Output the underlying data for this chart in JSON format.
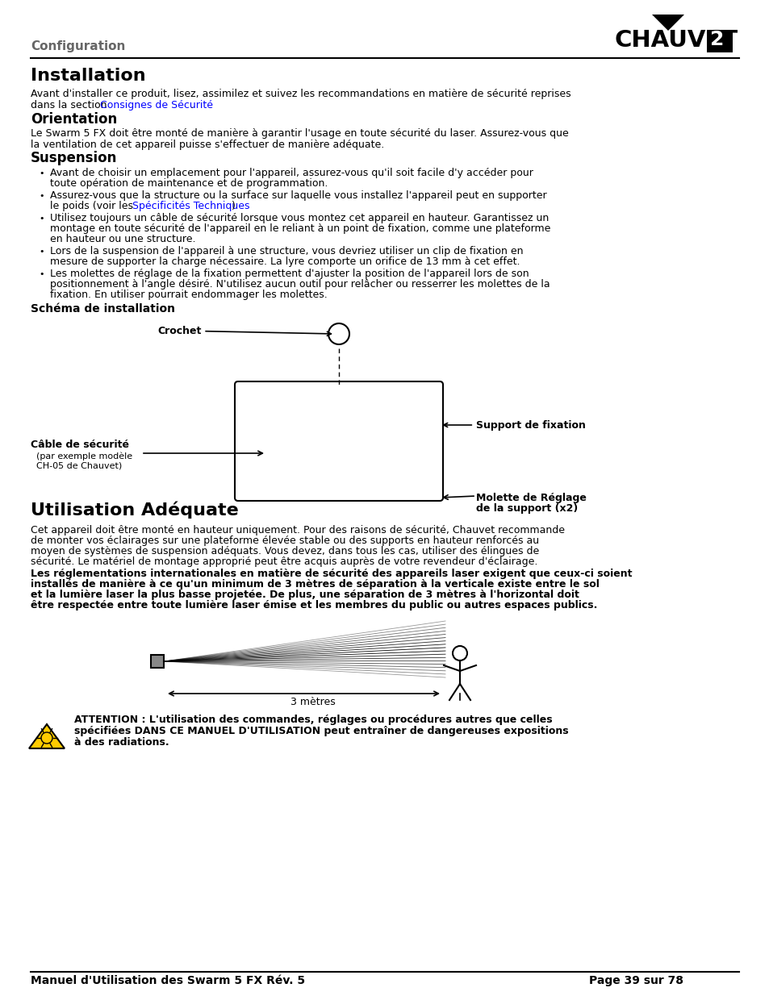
{
  "bg_color": "#ffffff",
  "header_section_text": "Configuration",
  "title_installation": "Installation",
  "link_text": "Consignes de Sécurité",
  "title_orientation": "Orientation",
  "title_suspension": "Suspension",
  "schema_title": "Schéma de installation",
  "label_crochet": "Crochet",
  "label_cable": "Câble de sécurité",
  "label_cable_sub1": "(par exemple modèle",
  "label_cable_sub2": "CH-05 de Chauvet)",
  "label_support": "Support de fixation",
  "label_molette1": "Molette de Réglage",
  "label_molette2": "de la support (x2)",
  "title_utilisation": "Utilisation Adéquate",
  "label_3metres": "3 mètres",
  "footer_left": "Manuel d'Utilisation des Swarm 5 FX Rév. 5",
  "footer_right": "Page 39 sur 78",
  "install_para_line1": "Avant d'installer ce produit, lisez, assimilez et suivez les recommandations en matière de sécurité reprises",
  "install_para_line2_pre": "dans la section ",
  "install_para_line2_post": ".",
  "orient_line1": "Le Swarm 5 FX doit être monté de manière à garantir l'usage en toute sécurité du laser. Assurez-vous que",
  "orient_line2": "la ventilation de cet appareil puisse s'effectuer de manière adéquate.",
  "bullet1_l1": "Avant de choisir un emplacement pour l'appareil, assurez-vous qu'il soit facile d'y accéder pour",
  "bullet1_l2": "toute opération de maintenance et de programmation.",
  "bullet2_l1": "Assurez-vous que la structure ou la surface sur laquelle vous installez l'appareil peut en supporter",
  "bullet2_l2_pre": "le poids (voir les ",
  "bullet2_l2_link": "Spécificités Techniques",
  "bullet2_l2_post": ")",
  "bullet3_l1": "Utilisez toujours un câble de sécurité lorsque vous montez cet appareil en hauteur. Garantissez un",
  "bullet3_l2": "montage en toute sécurité de l'appareil en le reliant à un point de fixation, comme une plateforme",
  "bullet3_l3": "en hauteur ou une structure.",
  "bullet4_l1": "Lors de la suspension de l'appareil à une structure, vous devriez utiliser un clip de fixation en",
  "bullet4_l2": "mesure de supporter la charge nécessaire. La lyre comporte un orifice de 13 mm à cet effet.",
  "bullet5_l1": "Les molettes de réglage de la fixation permettent d'ajuster la position de l'appareil lors de son",
  "bullet5_l2": "positionnement à l'angle désiré. N'utilisez aucun outil pour relâcher ou resserrer les molettes de la",
  "bullet5_l3": "fixation. En utiliser pourrait endommager les molettes.",
  "util_p1_l1": "Cet appareil doit être monté en hauteur uniquement. Pour des raisons de sécurité, Chauvet recommande",
  "util_p1_l2": "de monter vos éclairages sur une plateforme élevée stable ou des supports en hauteur renforcés au",
  "util_p1_l3": "moyen de systèmes de suspension adéquats. Vous devez, dans tous les cas, utiliser des élingues de",
  "util_p1_l4": "sécurité. Le matériel de montage approprié peut être acquis auprès de votre revendeur d'éclairage.",
  "util_p2_l1": "Les réglementations internationales en matière de sécurité des appareils laser exigent que ceux-ci soient",
  "util_p2_l2": "installés de manière à ce qu'un minimum de 3 mètres de séparation à la verticale existe entre le sol",
  "util_p2_l3": "et la lumière laser la plus basse projetée. De plus, une séparation de 3 mètres à l'horizontal doit",
  "util_p2_l4": "être respectée entre toute lumière laser émise et les membres du public ou autres espaces publics.",
  "warn_l1": "ATTENTION : L'utilisation des commandes, réglages ou procédures autres que celles",
  "warn_l2": "spécifiées DANS CE MANUEL D'UTILISATION peut entraîner de dangereuses expositions",
  "warn_l3": "à des radiations."
}
